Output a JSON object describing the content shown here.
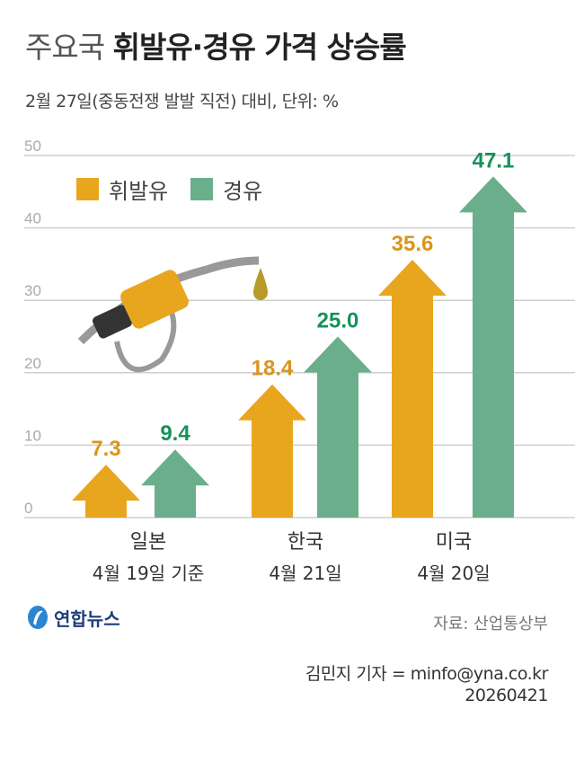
{
  "header": {
    "title_light": "주요국",
    "title_bold": "휘발유·경유 가격 상승률",
    "subtitle": "2월 27일(중동전쟁 발발 직전) 대비, 단위: %"
  },
  "chart_data": {
    "type": "bar",
    "title": "주요국 휘발유·경유 가격 상승률",
    "subtitle": "2월 27일(중동전쟁 발발 직전) 대비, 단위: %",
    "categories": [
      "일본",
      "한국",
      "미국"
    ],
    "category_notes": [
      "4월 19일 기준",
      "4월 21일",
      "4월 20일"
    ],
    "series": [
      {
        "name": "휘발유",
        "values": [
          7.3,
          18.4,
          35.6
        ],
        "labels": [
          "7.3",
          "18.4",
          "35.6"
        ],
        "color": "#E8A61E",
        "label_color": "#D9961A"
      },
      {
        "name": "경유",
        "values": [
          9.4,
          25.0,
          47.1
        ],
        "labels": [
          "9.4",
          "25.0",
          "47.1"
        ],
        "color": "#6BAE8C",
        "label_color": "#16915A"
      }
    ],
    "yticks": [
      "0",
      "10",
      "20",
      "30",
      "40",
      "50"
    ],
    "ylim": [
      0,
      50
    ],
    "grid": true,
    "legend_placement": "top-left"
  },
  "footer": {
    "logo_text": "연합뉴스",
    "source": "자료: 산업통상부",
    "credit": "김민지 기자 = minfo@yna.co.kr",
    "date": "20260421"
  }
}
